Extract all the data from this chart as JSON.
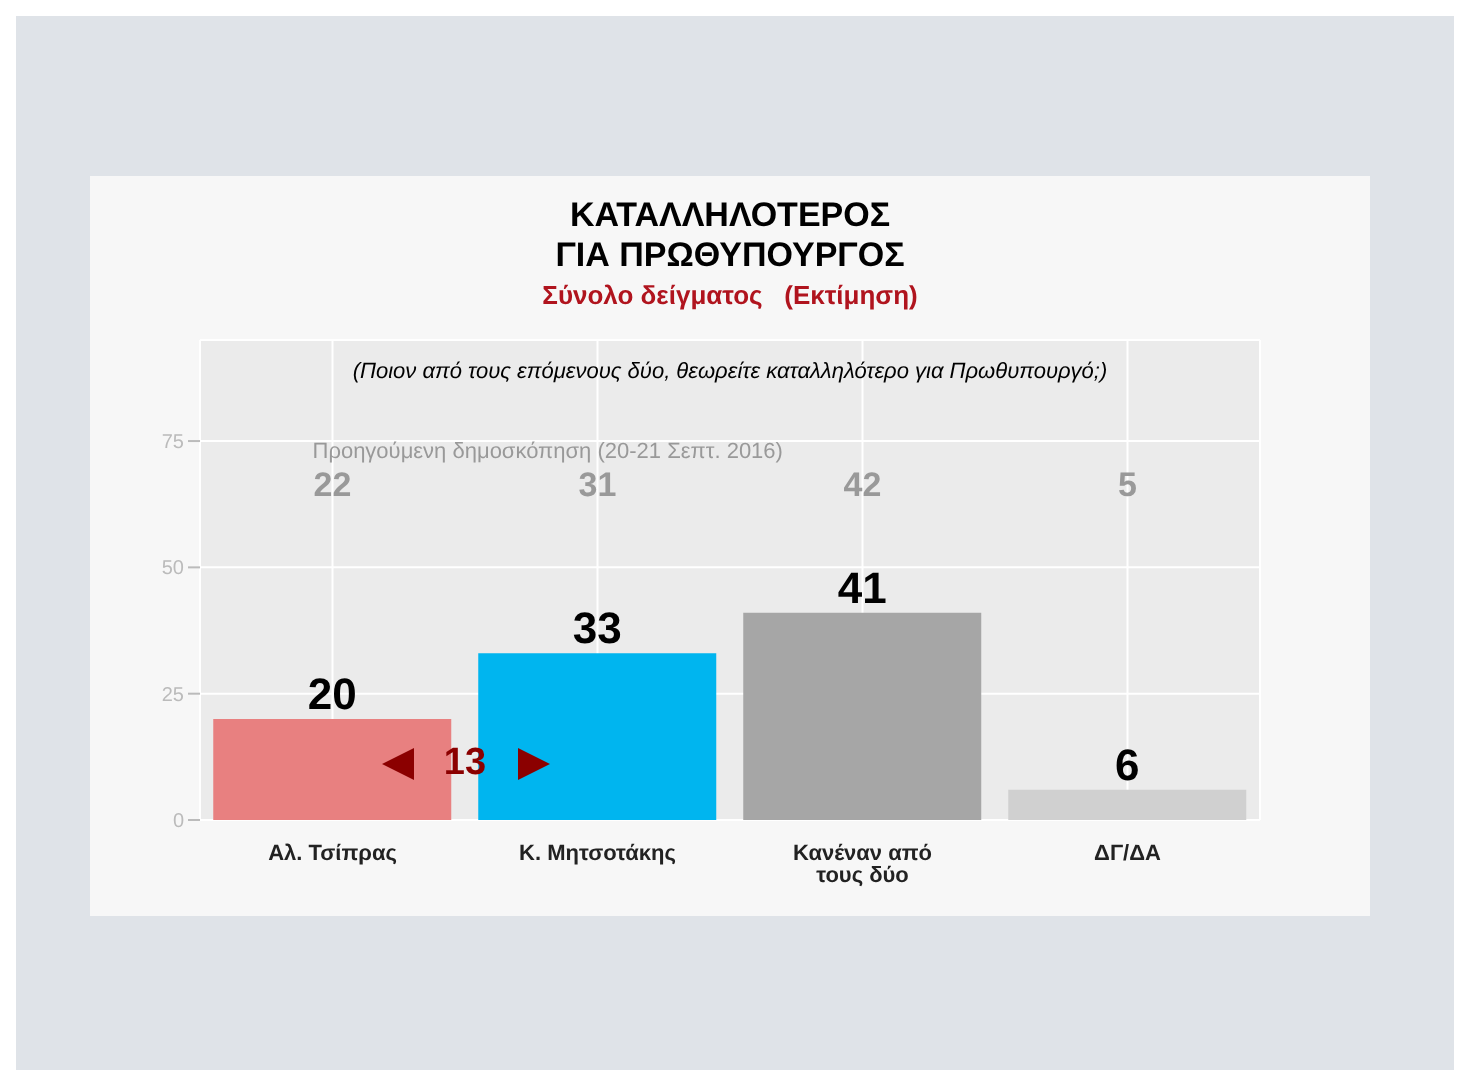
{
  "chart_data": {
    "type": "bar",
    "title": "ΚΑΤΑΛΛΗΛΟΤΕΡΟΣ\nΓΙΑ ΠΡΩΘΥΠΟΥΡΓΟΣ",
    "subtitle": "Σύνολο δείγματος   (Εκτίμηση)",
    "categories": [
      "Αλ. Τσίπρας",
      "Κ. Μητσοτάκης",
      "Κανέναν από τους δύο",
      "ΔΓ/ΔΑ"
    ],
    "values": [
      20,
      33,
      41,
      6
    ],
    "colors": [
      "#e88080",
      "#00b5ef",
      "#a6a6a6",
      "#d0d0d0"
    ],
    "ylim": [
      0,
      95
    ],
    "yticks": [
      0,
      25,
      50,
      75
    ],
    "grid": true,
    "data_labels": true,
    "annotations": [
      "(Ποιον από τους επόμενους δύο, θεωρείτε καταλληλότερο για Πρωθυπουργό;)",
      "Προηγούμενη δημοσκόπηση (20-21 Σεπτ. 2016)",
      "22",
      "31",
      "42",
      "5",
      "13"
    ]
  }
}
